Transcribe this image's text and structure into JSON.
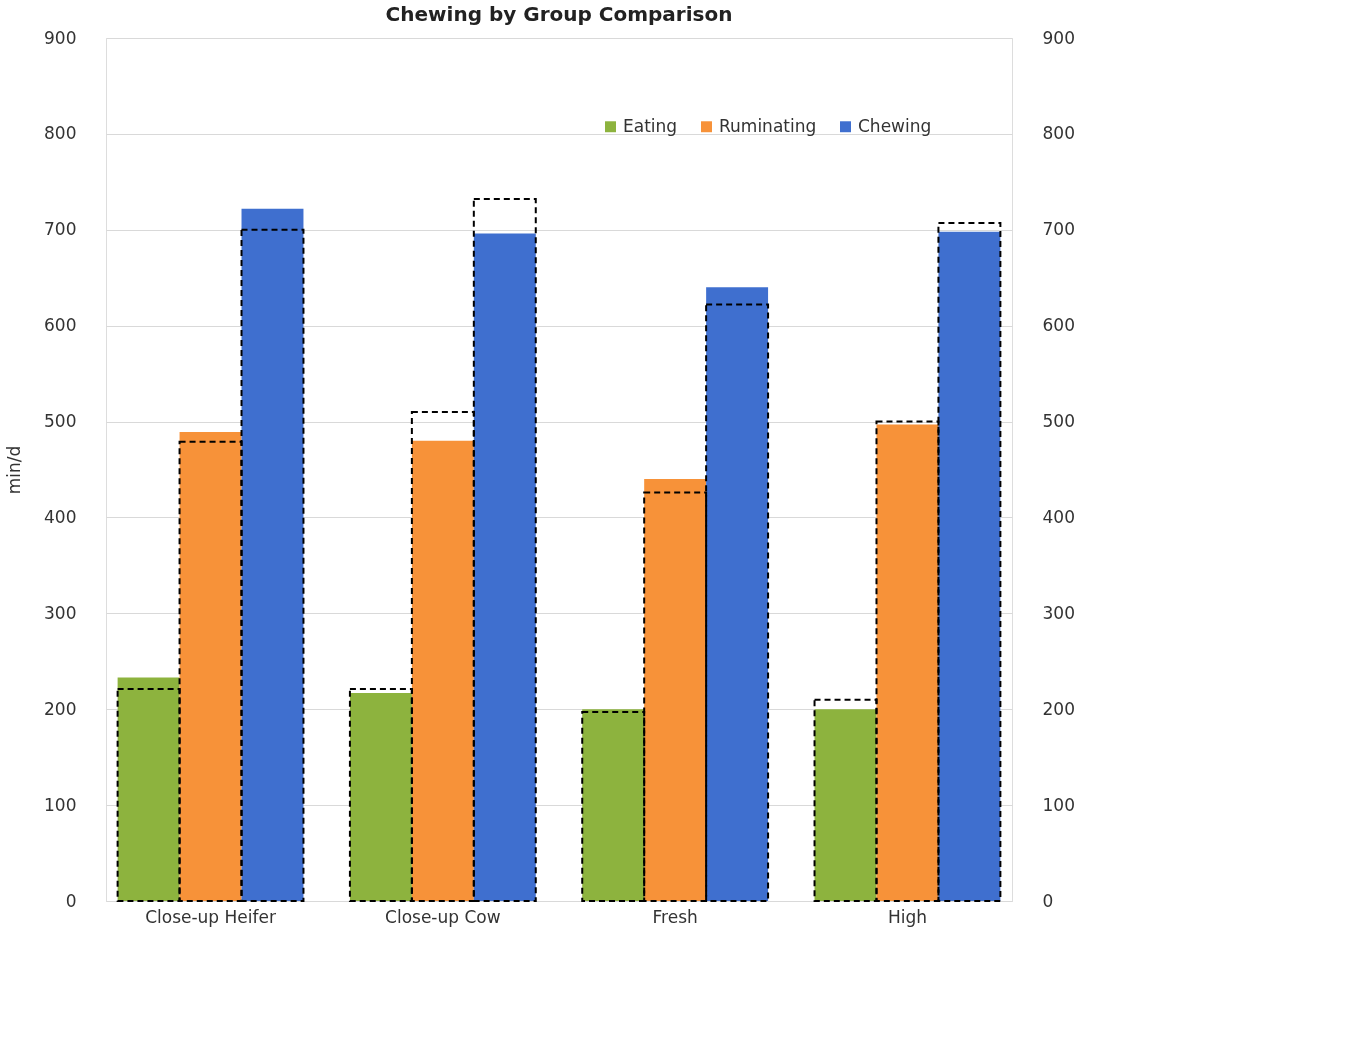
{
  "chart_data": {
    "type": "bar",
    "title": "Chewing by Group Comparison",
    "ylabel": "min/d",
    "categories": [
      "Close-up Heifer",
      "Close-up Cow",
      "Fresh",
      "High"
    ],
    "series": [
      {
        "name": "Eating",
        "color": "#8db33e",
        "values": [
          233,
          217,
          200,
          200
        ]
      },
      {
        "name": "Ruminating",
        "color": "#f79239",
        "values": [
          489,
          480,
          440,
          497
        ]
      },
      {
        "name": "Chewing",
        "color": "#3f6fcf",
        "values": [
          722,
          696,
          640,
          698
        ]
      },
      {
        "color": "#000000",
        "line_style": "dashed",
        "values": [
          221,
          221,
          197,
          210
        ]
      },
      {
        "color": "#000000",
        "line_style": "dashed",
        "values": [
          479,
          510,
          426,
          500
        ]
      },
      {
        "color": "#000000",
        "line_style": "dashed",
        "values": [
          700,
          732,
          622,
          707
        ]
      }
    ],
    "ylim": [
      0,
      900
    ],
    "yticks": [
      0,
      100,
      200,
      300,
      400,
      500,
      600,
      700,
      800,
      900
    ],
    "y2lim": [
      0,
      900
    ],
    "y2ticks": [
      0,
      100,
      200,
      300,
      400,
      500,
      600,
      700,
      800,
      900
    ],
    "grid": "y",
    "legend": "top right"
  }
}
